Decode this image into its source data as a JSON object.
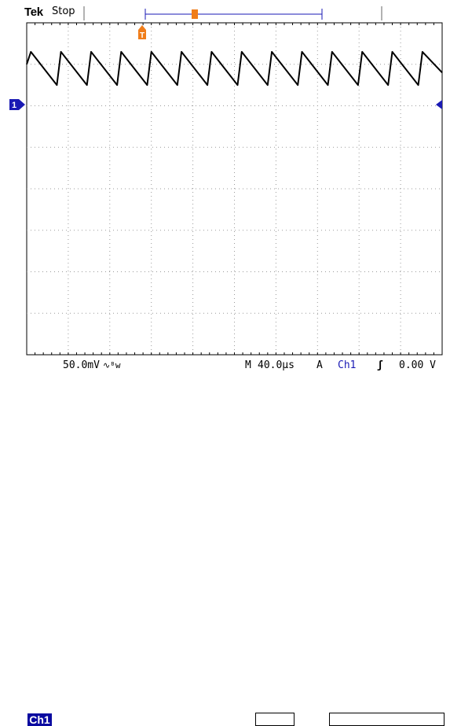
{
  "header": {
    "brand": "Tek",
    "acquisition_status": "Stop"
  },
  "markers": {
    "trigger_marker": "T",
    "channel_marker": "1"
  },
  "readouts": {
    "channel_label": "Ch1",
    "volts_per_div": "50.0mV",
    "coupling_symbol": "∿ᴮw",
    "timebase_prefix": "M",
    "timebase": "40.0µs",
    "trigger_mode": "A",
    "trigger_source": "Ch1",
    "trigger_slope": "ʃ",
    "trigger_level": "0.00 V"
  },
  "colors": {
    "trace": "#000000",
    "trigger_marker": "#f07d1a",
    "channel_marker": "#1a1ab4",
    "grid": "#9a9a9a"
  },
  "chart_data": {
    "type": "line",
    "title": "",
    "xlabel": "",
    "ylabel": "",
    "xlim": [
      -200,
      200
    ],
    "ylim": [
      -200,
      200
    ],
    "grid": true,
    "series": [
      {
        "name": "",
        "x": [
          -200,
          -196,
          -171,
          -167,
          -142,
          -138,
          -113,
          -109,
          -84,
          -80,
          -55,
          -51,
          -26,
          -22,
          3,
          7,
          32,
          36,
          61,
          65,
          90,
          94,
          119,
          123,
          148,
          152,
          177,
          181,
          200
        ],
        "y": [
          150,
          165,
          125,
          165,
          125,
          165,
          125,
          165,
          125,
          165,
          125,
          165,
          125,
          165,
          125,
          165,
          125,
          165,
          125,
          165,
          125,
          165,
          125,
          165,
          125,
          165,
          125,
          165,
          140
        ]
      }
    ]
  }
}
